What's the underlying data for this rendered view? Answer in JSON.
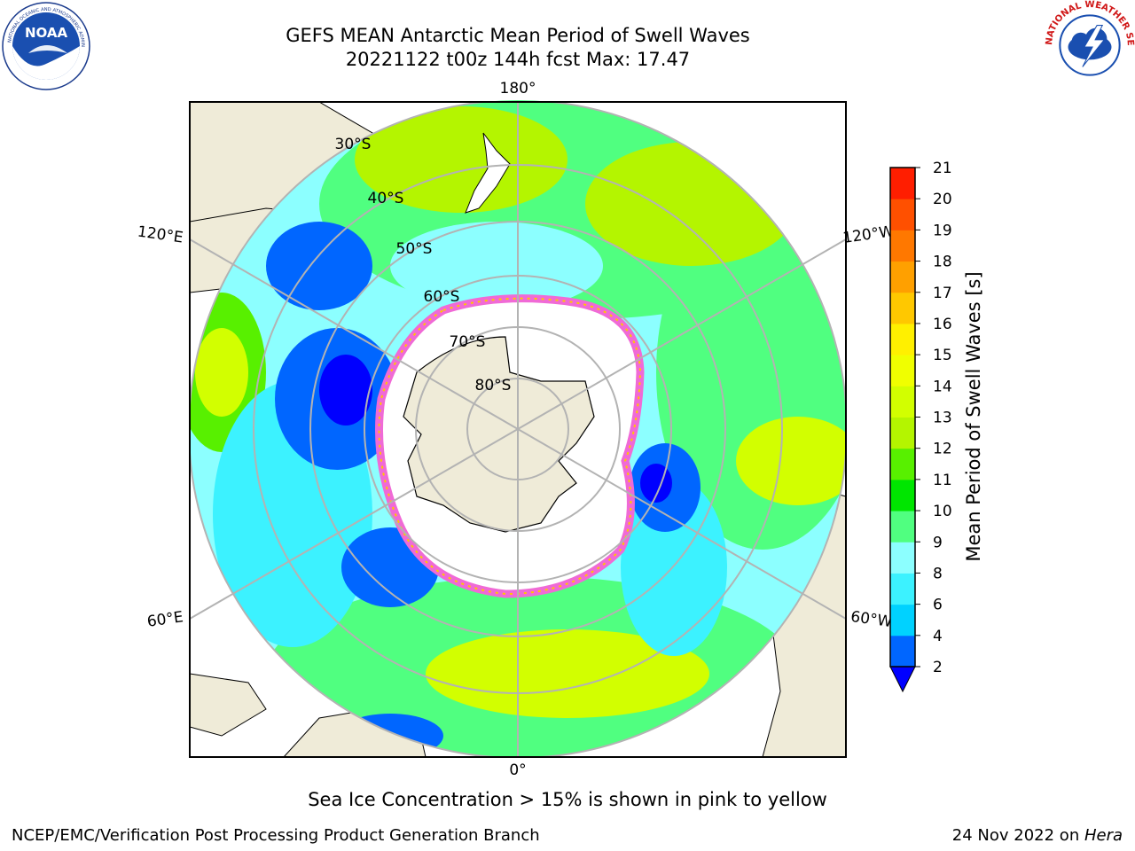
{
  "header": {
    "title_line1": "GEFS MEAN Antarctic Mean Period of Swell Waves",
    "title_line2": "20221122 t00z 144h fcst   Max: 17.47"
  },
  "logos": {
    "left": "noaa-logo",
    "left_text": "NOAA",
    "left_ring_text": "NATIONAL OCEANIC AND ATMOSPHERIC ADMINISTRATION · U.S. DEPARTMENT OF COMMERCE",
    "right": "national-weather-service-logo",
    "right_ring_text": "NATIONAL WEATHER SERVICE"
  },
  "map": {
    "projection": "south-polar-stereographic",
    "longitude_labels": {
      "top": "180°",
      "bottom": "0°",
      "upper_left": "120°E",
      "lower_left": "60°E",
      "upper_right": "120°W",
      "lower_right": "60°W"
    },
    "latitude_labels": [
      "30°S",
      "40°S",
      "50°S",
      "60°S",
      "70°S",
      "80°S"
    ],
    "colors": {
      "land": "#efebd8",
      "sea_ice": "#ffffff",
      "ice_edge": "#f06ad6",
      "gridline": "#b3b3b3"
    }
  },
  "colorbar": {
    "label": "Mean Period of Swell Waves [s]",
    "ticks": [
      "2",
      "4",
      "6",
      "8",
      "9",
      "10",
      "11",
      "12",
      "13",
      "14",
      "15",
      "16",
      "17",
      "18",
      "19",
      "20",
      "21"
    ],
    "colors": [
      "#0066ff",
      "#00d2ff",
      "#3cf2ff",
      "#8cffff",
      "#50ff80",
      "#00e600",
      "#58f000",
      "#b4f500",
      "#d2ff00",
      "#f0ff00",
      "#fff000",
      "#ffc800",
      "#ffa000",
      "#ff7800",
      "#ff5000",
      "#ff1e00"
    ],
    "under_color": "#0000ff"
  },
  "subtitle": "Sea Ice Concentration > 15% is shown in pink to yellow",
  "footer": {
    "left": "NCEP/EMC/Verification Post Processing Product Generation Branch",
    "right_date": "24 Nov 2022 on ",
    "right_host": "Hera"
  }
}
